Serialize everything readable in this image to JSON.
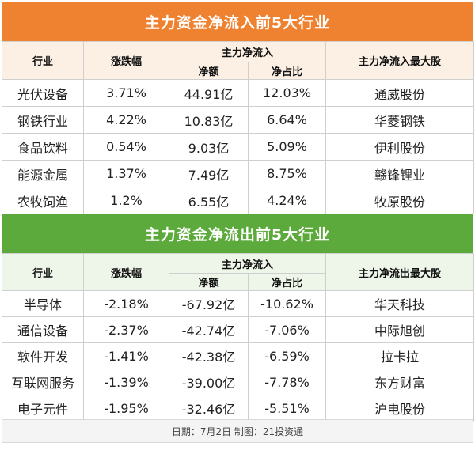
{
  "inflow": {
    "title": "主力资金净流入前5大行业",
    "headers": {
      "industry": "行业",
      "change": "涨跌幅",
      "main_flow": "主力净流入",
      "net_amount": "净额",
      "net_ratio": "净占比",
      "top_stock": "主力净流入最大股"
    },
    "rows": [
      {
        "industry": "光伏设备",
        "change": "3.71%",
        "amount": "44.91亿",
        "ratio": "12.03%",
        "stock": "通威股份"
      },
      {
        "industry": "钢铁行业",
        "change": "4.22%",
        "amount": "10.83亿",
        "ratio": "6.64%",
        "stock": "华菱钢铁"
      },
      {
        "industry": "食品饮料",
        "change": "0.54%",
        "amount": "9.03亿",
        "ratio": "5.09%",
        "stock": "伊利股份"
      },
      {
        "industry": "能源金属",
        "change": "1.37%",
        "amount": "7.49亿",
        "ratio": "8.75%",
        "stock": "赣锋锂业"
      },
      {
        "industry": "农牧饲渔",
        "change": "1.2%",
        "amount": "6.55亿",
        "ratio": "4.24%",
        "stock": "牧原股份"
      }
    ]
  },
  "outflow": {
    "title": "主力资金净流出前5大行业",
    "headers": {
      "industry": "行业",
      "change": "涨跌幅",
      "main_flow": "主力净流入",
      "net_amount": "净额",
      "net_ratio": "净占比",
      "top_stock": "主力净流出最大股"
    },
    "rows": [
      {
        "industry": "半导体",
        "change": "-2.18%",
        "amount": "-67.92亿",
        "ratio": "-10.62%",
        "stock": "华天科技"
      },
      {
        "industry": "通信设备",
        "change": "-2.37%",
        "amount": "-42.74亿",
        "ratio": "-7.06%",
        "stock": "中际旭创"
      },
      {
        "industry": "软件开发",
        "change": "-1.41%",
        "amount": "-42.38亿",
        "ratio": "-6.59%",
        "stock": "拉卡拉"
      },
      {
        "industry": "互联网服务",
        "change": "-1.39%",
        "amount": "-39.00亿",
        "ratio": "-7.78%",
        "stock": "东方财富"
      },
      {
        "industry": "电子元件",
        "change": "-1.95%",
        "amount": "-32.46亿",
        "ratio": "-5.51%",
        "stock": "沪电股份"
      }
    ]
  },
  "footer": "日期：7月2日 制图：21投资通",
  "colors": {
    "inflow_header": "#ef8230",
    "outflow_header": "#5daa3c"
  }
}
